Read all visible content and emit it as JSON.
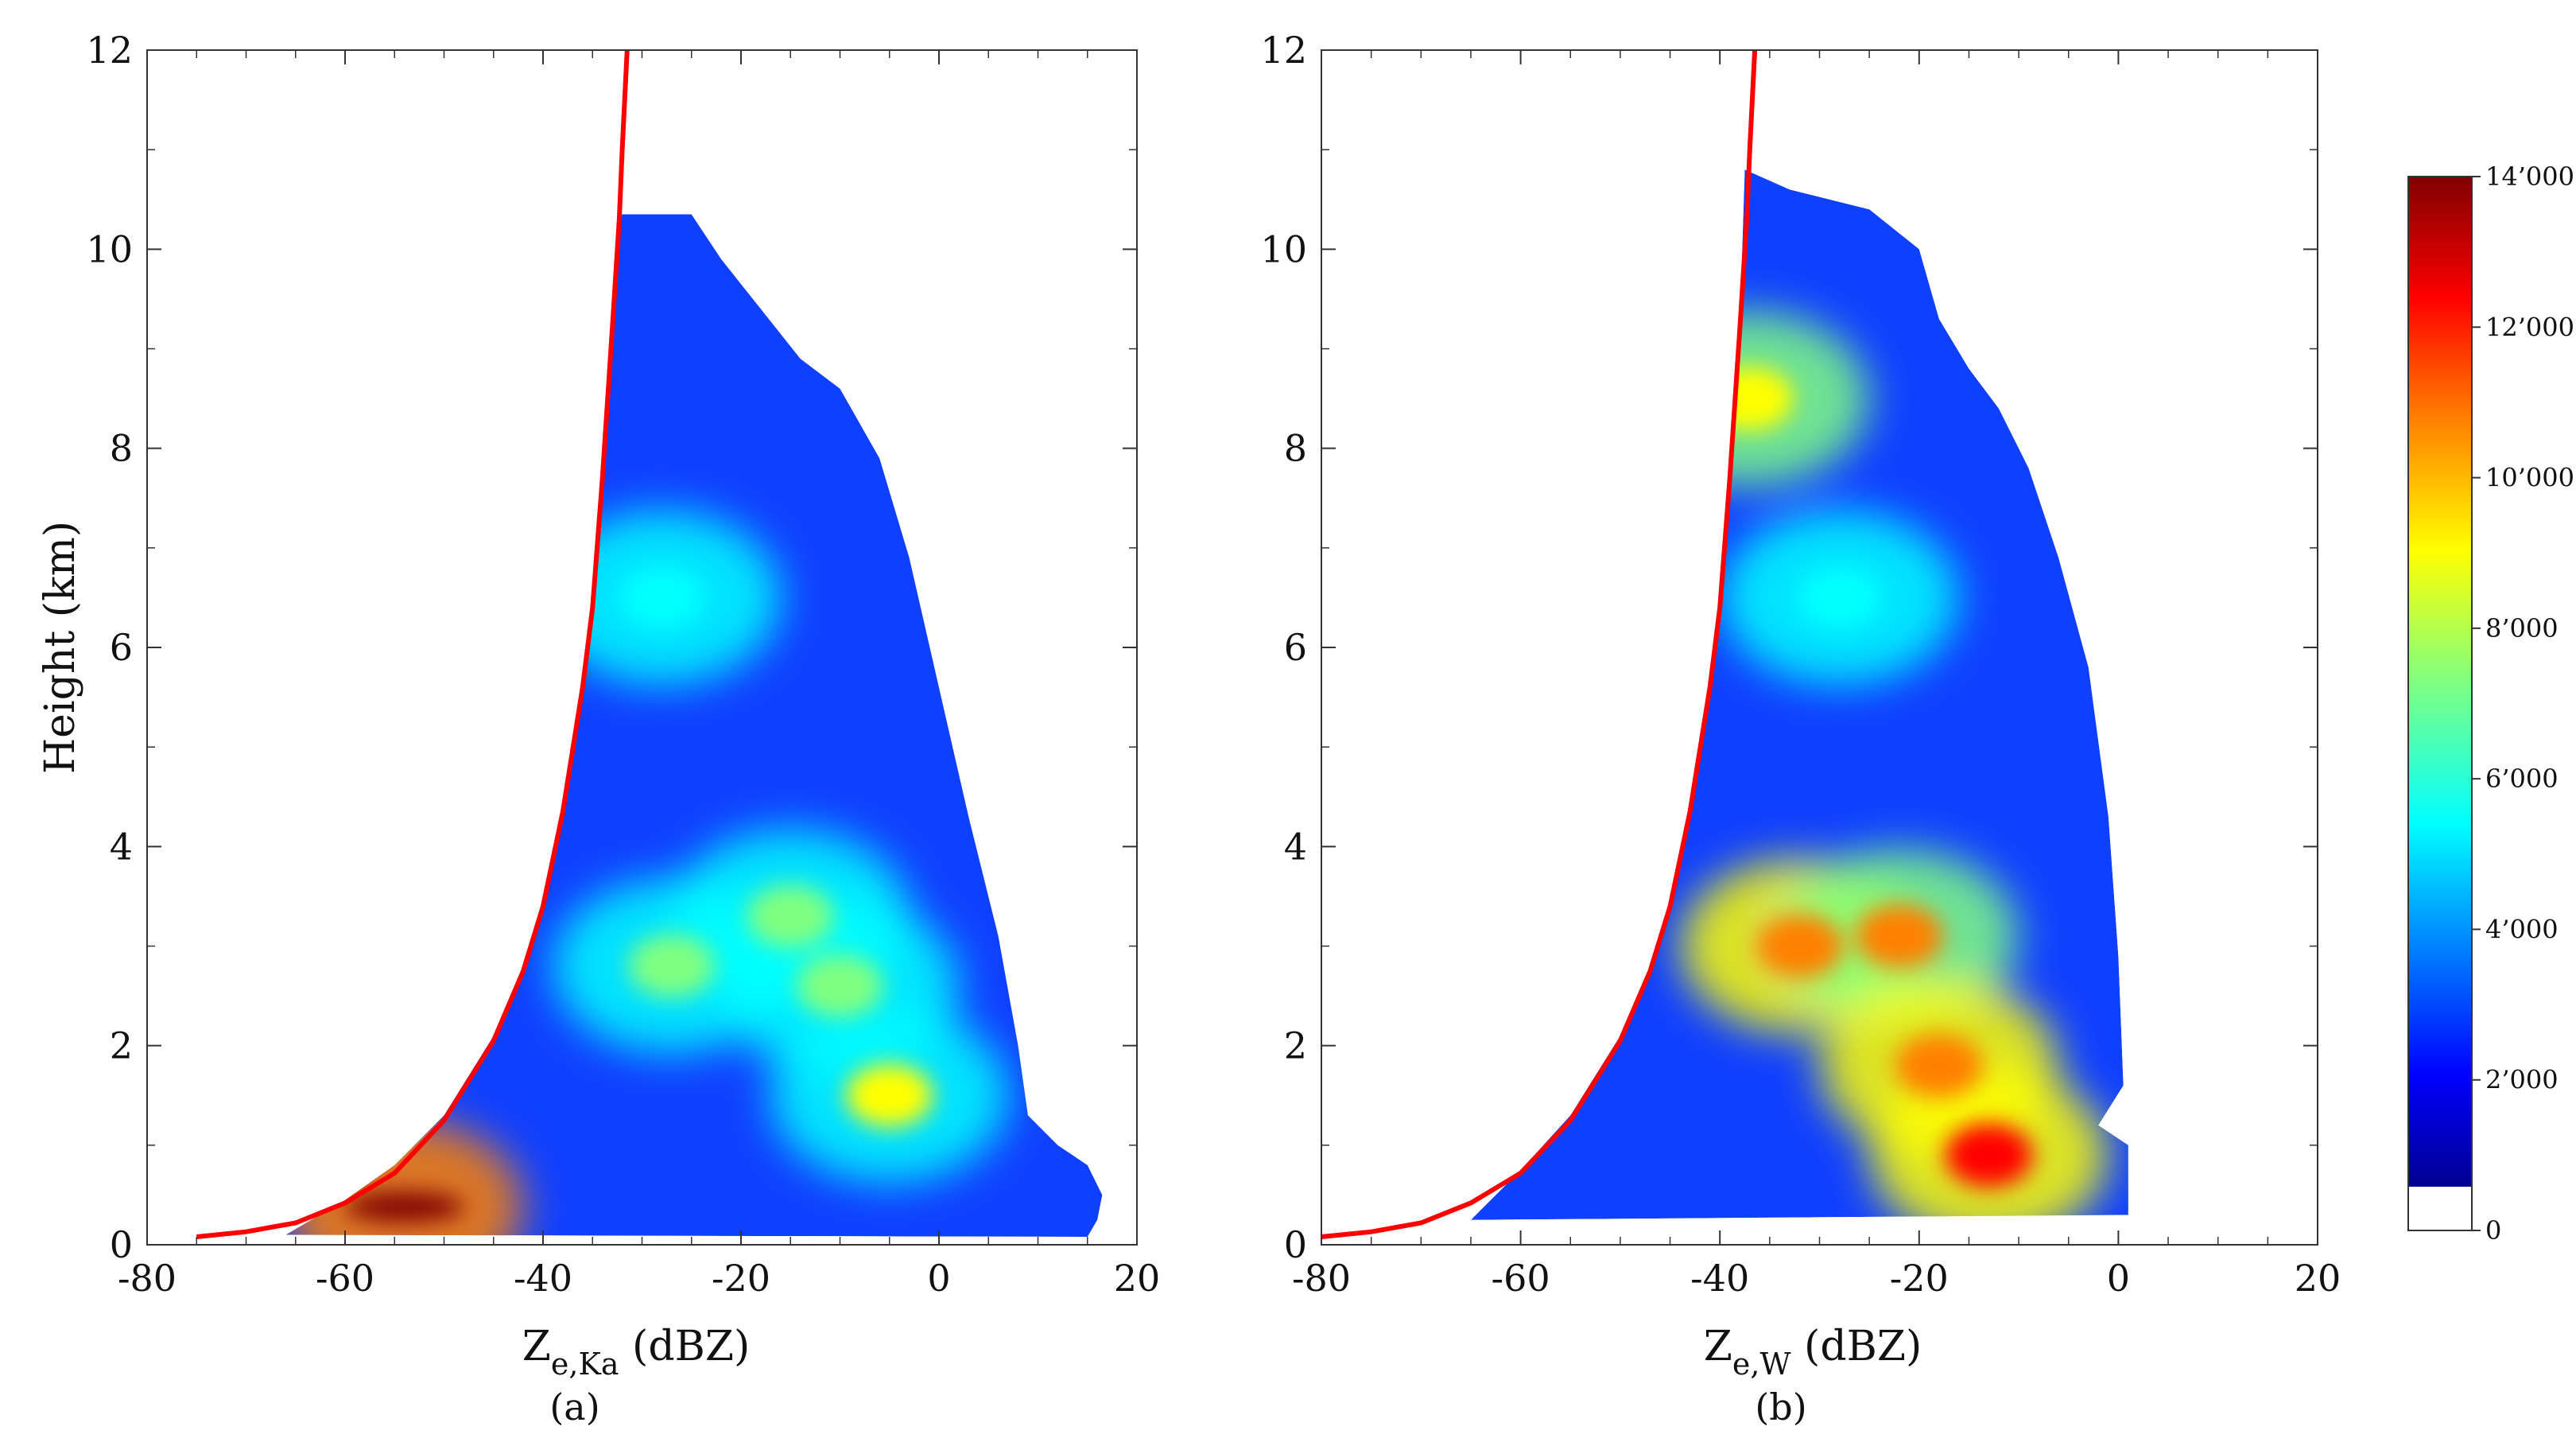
{
  "chart_data": [
    {
      "type": "heatmap",
      "panel_label": "(a)",
      "xlabel_main": "Z",
      "xlabel_sub": "e,Ka",
      "xlabel_unit": " (dBZ)",
      "ylabel": "Height (km)",
      "xlim": [
        -80,
        20
      ],
      "ylim": [
        0,
        12
      ],
      "xticks": [
        "-80",
        "-60",
        "-40",
        "-20",
        "0",
        "20"
      ],
      "yticks": [
        "0",
        "2",
        "4",
        "6",
        "8",
        "10",
        "12"
      ],
      "min_detectable_curve": {
        "color": "#ff0000",
        "points": [
          [
            -75,
            0.08
          ],
          [
            -70,
            0.13
          ],
          [
            -65,
            0.22
          ],
          [
            -60,
            0.42
          ],
          [
            -55,
            0.72
          ],
          [
            -50,
            1.25
          ],
          [
            -45,
            2.05
          ],
          [
            -42,
            2.75
          ],
          [
            -40,
            3.4
          ],
          [
            -38,
            4.35
          ],
          [
            -36,
            5.6
          ],
          [
            -35,
            6.4
          ],
          [
            -34,
            7.7
          ],
          [
            -33,
            9.2
          ],
          [
            -32.3,
            10.3
          ],
          [
            -32,
            11.0
          ],
          [
            -31.5,
            12.0
          ]
        ]
      },
      "density_extent": {
        "left_edge": [
          [
            -66,
            0.1
          ],
          [
            -60,
            0.45
          ],
          [
            -55,
            0.8
          ],
          [
            -50,
            1.3
          ],
          [
            -45,
            2.1
          ],
          [
            -42,
            2.8
          ],
          [
            -40,
            3.45
          ],
          [
            -38,
            4.4
          ],
          [
            -36,
            5.65
          ],
          [
            -35,
            6.45
          ],
          [
            -34,
            7.75
          ],
          [
            -33,
            9.25
          ],
          [
            -32.5,
            10.35
          ]
        ],
        "right_edge": [
          [
            -32.5,
            10.35
          ],
          [
            -25,
            10.35
          ],
          [
            -22,
            9.9
          ],
          [
            -18,
            9.4
          ],
          [
            -14,
            8.9
          ],
          [
            -10,
            8.6
          ],
          [
            -6,
            7.9
          ],
          [
            -3,
            6.9
          ],
          [
            0,
            5.6
          ],
          [
            3,
            4.3
          ],
          [
            6,
            3.1
          ],
          [
            8,
            2.0
          ],
          [
            9,
            1.3
          ],
          [
            12,
            1.0
          ],
          [
            15,
            0.8
          ],
          [
            16.5,
            0.5
          ],
          [
            16,
            0.25
          ],
          [
            15,
            0.08
          ]
        ]
      },
      "density_features": [
        {
          "x": -54,
          "y": 0.38,
          "count": 14000
        },
        {
          "x": -27,
          "y": 2.8,
          "count": 7500
        },
        {
          "x": -10,
          "y": 2.6,
          "count": 7000
        },
        {
          "x": -5,
          "y": 1.5,
          "count": 8000
        },
        {
          "x": -28,
          "y": 6.5,
          "count": 6000
        },
        {
          "x": -15,
          "y": 3.3,
          "count": 6500
        }
      ]
    },
    {
      "type": "heatmap",
      "panel_label": "(b)",
      "xlabel_main": "Z",
      "xlabel_sub": "e,W",
      "xlabel_unit": " (dBZ)",
      "ylabel": "",
      "xlim": [
        -80,
        20
      ],
      "ylim": [
        0,
        12
      ],
      "xticks": [
        "-80",
        "-60",
        "-40",
        "-20",
        "0",
        "20"
      ],
      "yticks": [
        "0",
        "2",
        "4",
        "6",
        "8",
        "10",
        "12"
      ],
      "min_detectable_curve": {
        "color": "#ff0000",
        "points": [
          [
            -80,
            0.08
          ],
          [
            -75,
            0.13
          ],
          [
            -70,
            0.22
          ],
          [
            -65,
            0.42
          ],
          [
            -60,
            0.72
          ],
          [
            -55,
            1.25
          ],
          [
            -50,
            2.05
          ],
          [
            -47,
            2.75
          ],
          [
            -45,
            3.4
          ],
          [
            -43,
            4.35
          ],
          [
            -41,
            5.6
          ],
          [
            -40,
            6.4
          ],
          [
            -39,
            7.7
          ],
          [
            -38,
            9.2
          ],
          [
            -37.3,
            10.3
          ],
          [
            -37,
            11.0
          ],
          [
            -36.5,
            12.0
          ]
        ]
      },
      "density_extent": {
        "left_edge": [
          [
            -65,
            0.25
          ],
          [
            -60,
            0.75
          ],
          [
            -55,
            1.3
          ],
          [
            -50,
            2.1
          ],
          [
            -47,
            2.8
          ],
          [
            -45,
            3.45
          ],
          [
            -43,
            4.4
          ],
          [
            -41,
            5.65
          ],
          [
            -40,
            6.45
          ],
          [
            -39,
            7.75
          ],
          [
            -38,
            9.25
          ],
          [
            -37.5,
            10.8
          ]
        ],
        "right_edge": [
          [
            -37.5,
            10.8
          ],
          [
            -33,
            10.6
          ],
          [
            -25,
            10.4
          ],
          [
            -20,
            10.0
          ],
          [
            -18,
            9.3
          ],
          [
            -15,
            8.8
          ],
          [
            -12,
            8.4
          ],
          [
            -9,
            7.8
          ],
          [
            -6,
            6.9
          ],
          [
            -3,
            5.8
          ],
          [
            -1,
            4.3
          ],
          [
            0,
            2.9
          ],
          [
            0.5,
            1.6
          ],
          [
            -2,
            1.2
          ],
          [
            1,
            1.0
          ],
          [
            1,
            0.3
          ]
        ]
      },
      "density_features": [
        {
          "x": -32,
          "y": 3.0,
          "count": 11000
        },
        {
          "x": -22,
          "y": 3.1,
          "count": 10000
        },
        {
          "x": -18,
          "y": 1.8,
          "count": 10500
        },
        {
          "x": -13,
          "y": 0.9,
          "count": 11500
        },
        {
          "x": -37,
          "y": 8.5,
          "count": 8500
        },
        {
          "x": -28,
          "y": 6.5,
          "count": 6000
        }
      ]
    }
  ],
  "colorbar": {
    "ticks": [
      "0",
      "2’000",
      "4’000",
      "6’000",
      "8’000",
      "10’000",
      "12’000",
      "14’000"
    ],
    "max": 14000,
    "colormap": [
      "#00008f",
      "#0000ff",
      "#0080ff",
      "#00ffff",
      "#80ff80",
      "#ffff00",
      "#ff8000",
      "#ff0000",
      "#800000"
    ]
  }
}
